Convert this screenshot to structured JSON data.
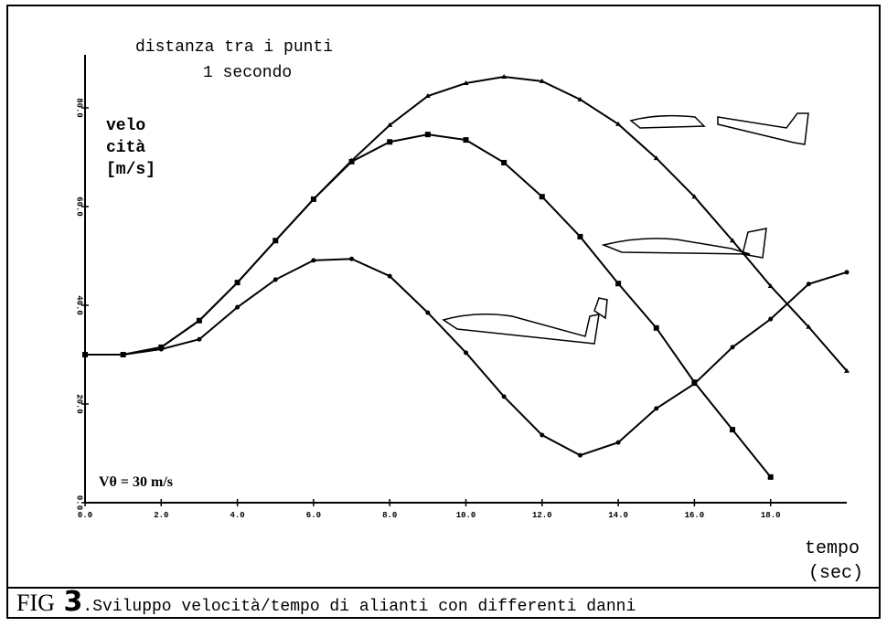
{
  "chart_data": {
    "type": "line",
    "annotations": [
      "distanza tra i punti",
      "1 secondo"
    ],
    "ylabel": [
      "velo",
      "cità",
      "[m/s]"
    ],
    "initial_speed_label": "Vθ = 30 m/s",
    "xlabel": [
      "tempo",
      "(sec)"
    ],
    "caption_prefix": "FIG",
    "caption_number": "3",
    "caption_text": ".Sviluppo velocità/tempo di alianti con differenti danni",
    "x": [
      0,
      1,
      2,
      3,
      4,
      5,
      6,
      7,
      8,
      9,
      10,
      11,
      12,
      13,
      14,
      15,
      16,
      17,
      18,
      19,
      20
    ],
    "series": [
      {
        "color": "#000000",
        "marker": "triangle",
        "values": [
          30,
          30,
          31.5,
          36.9,
          44.6,
          53.1,
          61.5,
          69.3,
          76.5,
          82.4,
          85,
          86.3,
          85.4,
          81.7,
          76.7,
          69.8,
          62,
          53.1,
          43.9,
          35.6,
          26.7
        ]
      },
      {
        "color": "#000000",
        "marker": "square",
        "values": [
          30,
          30,
          31.5,
          36.9,
          44.6,
          53.1,
          61.5,
          69.1,
          73.1,
          74.6,
          73.5,
          68.9,
          62,
          53.9,
          44.4,
          35.4,
          24.4,
          14.8,
          5.2,
          null,
          null
        ]
      },
      {
        "color": "#000000",
        "marker": "circle",
        "values": [
          30,
          30,
          31.1,
          33.1,
          39.6,
          45.2,
          49.1,
          49.4,
          45.9,
          38.5,
          30.4,
          21.5,
          13.7,
          9.6,
          12.2,
          19.1,
          24.1,
          31.5,
          37.2,
          44.3,
          46.7
        ]
      }
    ],
    "xlim": [
      0,
      20
    ],
    "ylim": [
      0,
      90
    ],
    "xticks": [
      {
        "value": 0,
        "label": "0.0"
      },
      {
        "value": 2,
        "label": "2.0"
      },
      {
        "value": 4,
        "label": "4.0"
      },
      {
        "value": 6,
        "label": "6.0"
      },
      {
        "value": 8,
        "label": "8.0"
      },
      {
        "value": 10,
        "label": "10.0"
      },
      {
        "value": 12,
        "label": "12.0"
      },
      {
        "value": 14,
        "label": "14.0"
      },
      {
        "value": 16,
        "label": "16.0"
      },
      {
        "value": 18,
        "label": "18.0"
      }
    ],
    "yticks": [
      {
        "value": 0,
        "label": "0.0"
      },
      {
        "value": 20,
        "label": "20.0"
      },
      {
        "value": 40,
        "label": "40.0"
      },
      {
        "value": 60,
        "label": "60.0"
      },
      {
        "value": 80,
        "label": "80.0"
      }
    ]
  }
}
